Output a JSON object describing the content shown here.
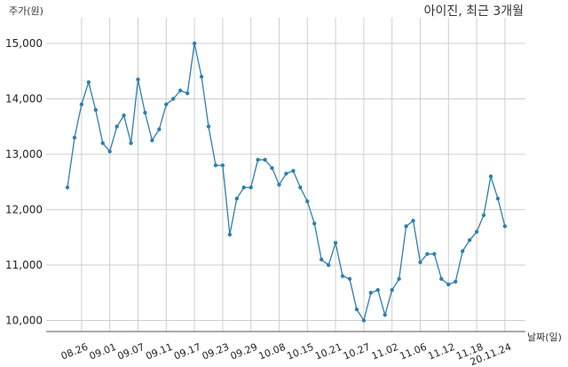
{
  "chart_data": {
    "type": "line",
    "title": "아이진, 최근 3개월",
    "ylabel": "주가(원)",
    "xlabel": "날짜(일)",
    "ylim": [
      9800,
      15400
    ],
    "yticks": [
      10000,
      11000,
      12000,
      13000,
      14000,
      15000
    ],
    "ytick_labels": [
      "10,000",
      "11,000",
      "12,000",
      "13,000",
      "14,000",
      "15,000"
    ],
    "grid": true,
    "line_color": "#2e7fb0",
    "xtick_labels": [
      "08.26",
      "09.01",
      "09.07",
      "09.11",
      "09.17",
      "09.23",
      "09.29",
      "10.08",
      "10.15",
      "10.21",
      "10.27",
      "11.02",
      "11.06",
      "11.12",
      "11.18",
      "20.11.24"
    ],
    "xtick_index": [
      2,
      6,
      10,
      14,
      18,
      22,
      26,
      30,
      34,
      38,
      42,
      46,
      50,
      54,
      58,
      62
    ],
    "series": [
      {
        "values": [
          12400,
          13300,
          13900,
          14300,
          13800,
          13200,
          13050,
          13500,
          13700,
          13200,
          14350,
          13750,
          13250,
          13450,
          13900,
          14000,
          14150,
          14100,
          15000,
          14400,
          13500,
          12800,
          12800,
          11550,
          12200,
          12400,
          12400,
          12900,
          12900,
          12750,
          12450,
          12650,
          12700,
          12400,
          12150,
          11750,
          11100,
          11000,
          11400,
          10800,
          10750,
          10200,
          10000,
          10500,
          10550,
          10100,
          10550,
          10750,
          11700,
          11800,
          11050,
          11200,
          11200,
          10750,
          10650,
          10700,
          11250,
          11450,
          11600,
          11900,
          12600,
          12200,
          11700
        ]
      }
    ]
  }
}
